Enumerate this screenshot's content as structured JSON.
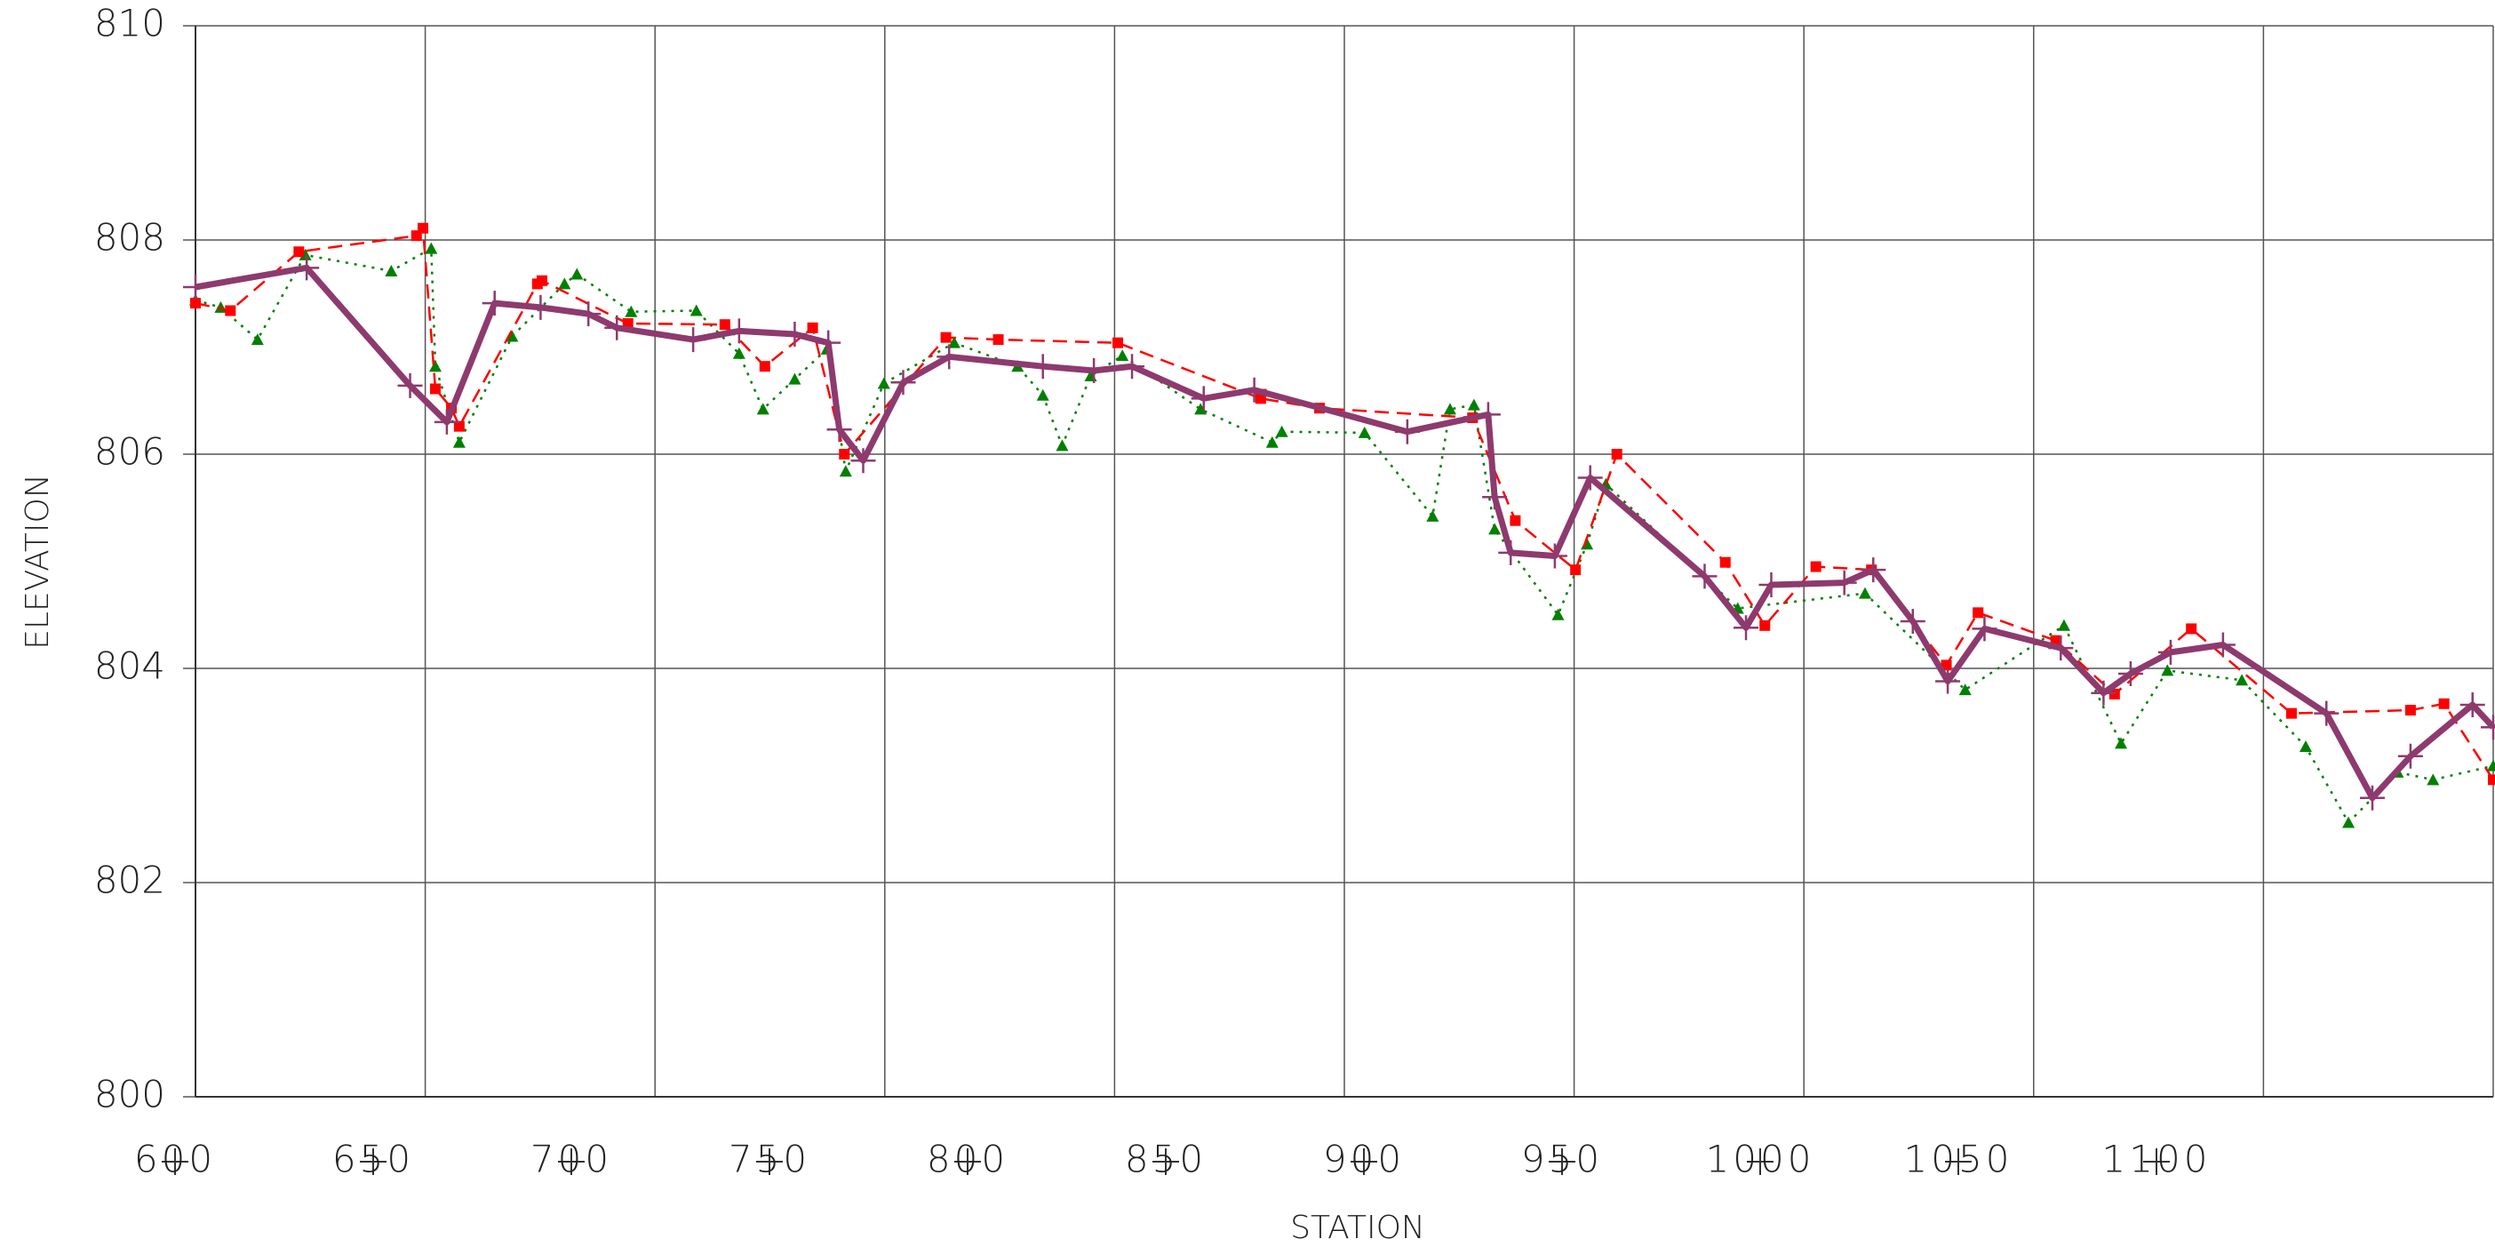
{
  "chart_data": {
    "type": "line",
    "x_label": "STATION",
    "y_label": "ELEVATION",
    "xlim": [
      600,
      1100
    ],
    "ylim": [
      800,
      810
    ],
    "xticks": [
      600,
      650,
      700,
      750,
      800,
      850,
      900,
      950,
      1000,
      1050,
      1100
    ],
    "yticks": [
      800,
      802,
      804,
      806,
      808,
      810
    ],
    "grid": true,
    "series": [
      {
        "color": "#008000",
        "style": "dotted",
        "marker": "triangle",
        "x": [
          600,
          605.5,
          613.5,
          623.9,
          642.6,
          651.3,
          652.2,
          657.4,
          668.9,
          680.3,
          683.0,
          694.8,
          709.0,
          718.3,
          723.5,
          730.4,
          737.4,
          741.5,
          749.8,
          765.1,
          778.9,
          784.4,
          788.6,
          794.8,
          801.7,
          818.7,
          834.3,
          836.4,
          854.4,
          869.2,
          873.0,
          878.2,
          882.7,
          896.5,
          902.8,
          906.9,
          935.6,
          963.3,
          985.1,
          1006.6,
          1019.0,
          1029.1,
          1045.3,
          1059.2,
          1068.5,
          1079.2,
          1086.9,
          1100
        ],
        "values": [
          807.44,
          807.37,
          807.07,
          807.86,
          807.71,
          807.92,
          806.82,
          806.11,
          807.1,
          807.59,
          807.68,
          807.33,
          807.34,
          806.94,
          806.42,
          806.7,
          806.98,
          805.84,
          806.66,
          807.04,
          806.82,
          806.55,
          806.08,
          806.73,
          806.92,
          806.42,
          806.11,
          806.21,
          806.2,
          805.42,
          806.42,
          806.46,
          805.3,
          804.5,
          805.16,
          805.72,
          804.56,
          804.7,
          803.8,
          804.4,
          803.3,
          803.98,
          803.89,
          803.27,
          802.56,
          803.03,
          802.96,
          803.09
        ]
      },
      {
        "color": "#ff0000",
        "style": "dashed",
        "marker": "square",
        "x": [
          600,
          607.6,
          622.5,
          648.1,
          649.5,
          652.2,
          655.7,
          657.4,
          674.4,
          675.4,
          694.1,
          715.2,
          723.9,
          734.3,
          741.2,
          763.3,
          774.7,
          800.7,
          831.8,
          844.6,
          877.9,
          887.2,
          900.3,
          909.3,
          932.9,
          941.5,
          952.6,
          964.7,
          981.0,
          987.9,
          1004.8,
          1017.6,
          1034.3,
          1056.1,
          1082.0,
          1089.3,
          1100
        ],
        "values": [
          807.41,
          807.34,
          807.89,
          808.04,
          808.11,
          806.61,
          806.43,
          806.26,
          807.59,
          807.62,
          807.22,
          807.21,
          806.82,
          807.18,
          806.0,
          807.09,
          807.07,
          807.04,
          806.52,
          806.43,
          806.34,
          805.38,
          804.92,
          806.0,
          804.99,
          804.4,
          804.95,
          804.92,
          804.03,
          804.52,
          804.26,
          803.76,
          804.37,
          803.58,
          803.61,
          803.67,
          802.96
        ]
      },
      {
        "color": "#8e3a6e",
        "style": "solid",
        "marker": "plus",
        "x": [
          600,
          624.2,
          646.7,
          654.7,
          665.1,
          675.1,
          685.5,
          691.7,
          708.3,
          718.3,
          730.4,
          737.7,
          740.1,
          745.3,
          754.0,
          764.0,
          784.4,
          795.5,
          803.8,
          819.4,
          830.4,
          863.7,
          881.3,
          882.7,
          886.2,
          895.8,
          903.5,
          928.4,
          937.4,
          942.9,
          958.8,
          965.1,
          973.7,
          981.3,
          989.3,
          1005.9,
          1015.2,
          1021.1,
          1029.8,
          1041.2,
          1063.7,
          1073.7,
          1082.0,
          1095.5,
          1100
        ],
        "values": [
          807.56,
          807.74,
          806.64,
          806.3,
          807.41,
          807.37,
          807.31,
          807.18,
          807.07,
          807.15,
          807.12,
          807.04,
          806.23,
          805.94,
          806.67,
          806.91,
          806.82,
          806.78,
          806.82,
          806.52,
          806.6,
          806.21,
          806.37,
          805.6,
          805.08,
          805.05,
          805.78,
          804.86,
          804.38,
          804.78,
          804.8,
          804.92,
          804.44,
          803.88,
          804.37,
          804.19,
          803.77,
          803.95,
          804.15,
          804.22,
          803.58,
          802.79,
          803.18,
          803.66,
          803.45
        ]
      }
    ]
  }
}
